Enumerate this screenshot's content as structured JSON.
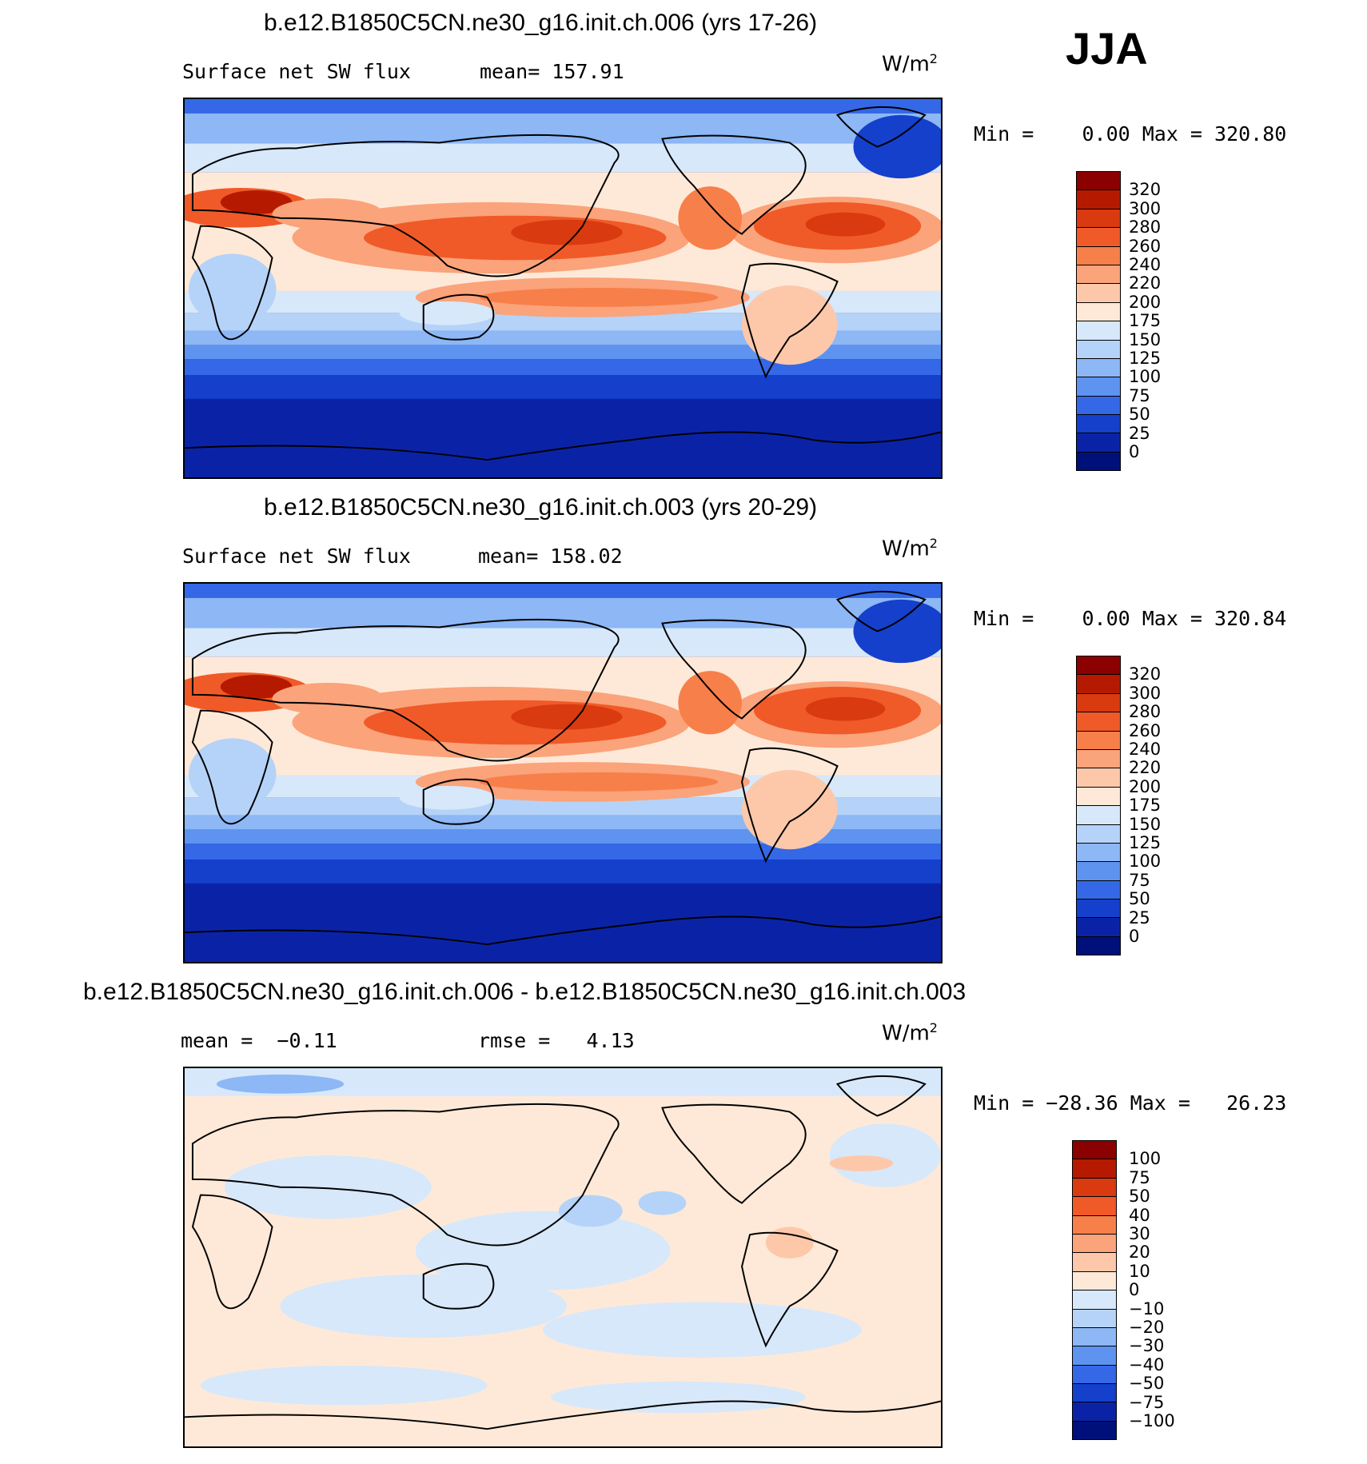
{
  "season": "JJA",
  "units_text": "W/m",
  "units_exp": "2",
  "panel1": {
    "title": "b.e12.B1850C5CN.ne30_g16.init.ch.006 (yrs 17-26)",
    "var_label": "Surface net SW flux",
    "stat": "mean= 157.91",
    "minmax": "Min =    0.00 Max = 320.80"
  },
  "panel2": {
    "title": "b.e12.B1850C5CN.ne30_g16.init.ch.003 (yrs 20-29)",
    "var_label": "Surface net SW flux",
    "stat": "mean= 158.02",
    "minmax": "Min =    0.00 Max = 320.84"
  },
  "panel3": {
    "title": "b.e12.B1850C5CN.ne30_g16.init.ch.006 - b.e12.B1850C5CN.ne30_g16.init.ch.003",
    "stat1": "mean =  −0.11",
    "stat2": "rmse =   4.13",
    "minmax": "Min = −28.36 Max =   26.23"
  },
  "colorbar_abs": {
    "labels": [
      "320",
      "300",
      "280",
      "260",
      "240",
      "220",
      "200",
      "175",
      "150",
      "125",
      "100",
      "75",
      "50",
      "25",
      "0"
    ],
    "colors": [
      "#8b0000",
      "#b51a00",
      "#d93a10",
      "#f05a28",
      "#f77f4a",
      "#fba37a",
      "#fdc8aa",
      "#fee9d8",
      "#d7e8fa",
      "#b5d3f8",
      "#8db7f5",
      "#5e94f0",
      "#3468e6",
      "#1440cc",
      "#0a23a6",
      "#00107a"
    ]
  },
  "colorbar_diff": {
    "labels": [
      "100",
      "75",
      "50",
      "40",
      "30",
      "20",
      "10",
      "0",
      "−10",
      "−20",
      "−30",
      "−40",
      "−50",
      "−75",
      "−100"
    ],
    "colors": [
      "#8b0000",
      "#b51a00",
      "#d93a10",
      "#f05a28",
      "#f77f4a",
      "#fba37a",
      "#fdc8aa",
      "#fee9d8",
      "#d7e8fa",
      "#b5d3f8",
      "#8db7f5",
      "#5e94f0",
      "#3468e6",
      "#1440cc",
      "#0a23a6",
      "#00107a"
    ]
  }
}
